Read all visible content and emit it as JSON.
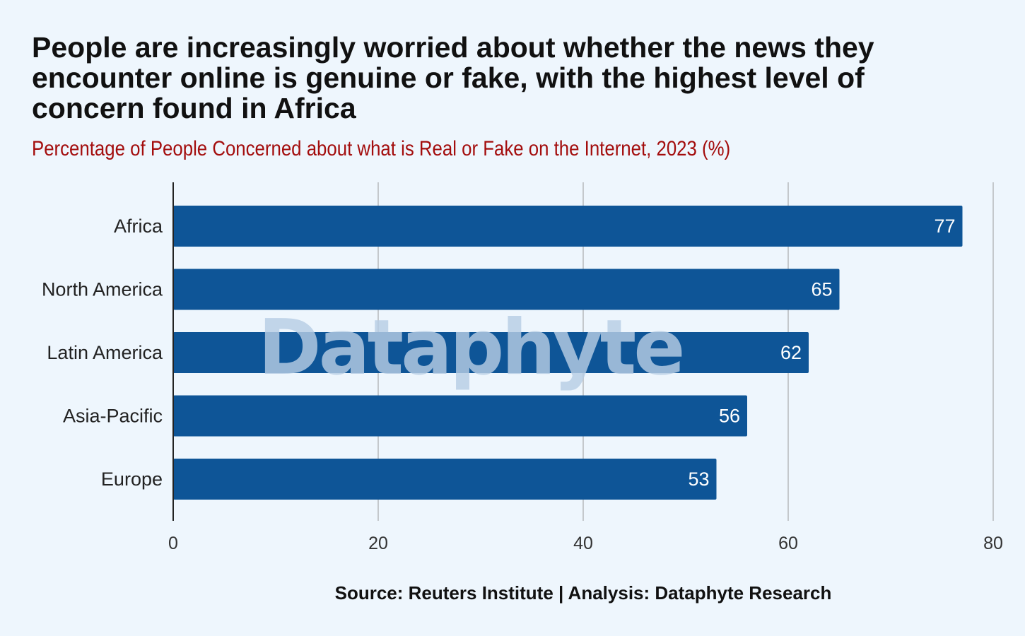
{
  "chart_data": {
    "type": "bar",
    "orientation": "horizontal",
    "title": "People are increasingly worried about whether the news they encounter online is genuine or fake, with the highest level of concern found in Africa",
    "subtitle": "Percentage of People Concerned about what is Real or Fake on the Internet, 2023 (%)",
    "categories": [
      "Africa",
      "North America",
      "Latin America",
      "Asia-Pacific",
      "Europe"
    ],
    "values": [
      77,
      65,
      62,
      56,
      53
    ],
    "xlim": [
      0,
      80
    ],
    "x_ticks": [
      0,
      20,
      40,
      60,
      80
    ],
    "grid": true,
    "bar_color": "#0e5597",
    "value_label_color": "#ffffff"
  },
  "source": "Source: Reuters Institute | Analysis: Dataphyte Research",
  "watermark": "Dataphyte"
}
